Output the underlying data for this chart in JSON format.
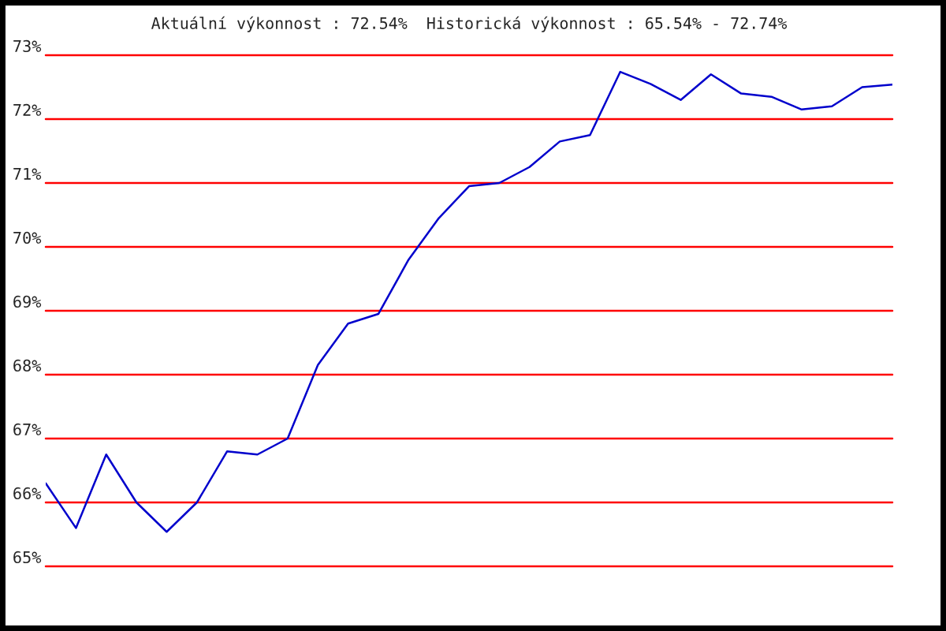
{
  "chart_data": {
    "type": "line",
    "title": "Aktuální výkonnost : 72.54%  Historická výkonnost : 65.54% - 72.74%",
    "categories": [
      null,
      null,
      null,
      null,
      null,
      null,
      null,
      null,
      null,
      null,
      null,
      null,
      null,
      null,
      null,
      null,
      null,
      null,
      null,
      null,
      null,
      null,
      null,
      null,
      null,
      null,
      null,
      null,
      null
    ],
    "series": [
      {
        "color": "#0000cc",
        "values": [
          66.3,
          65.6,
          66.75,
          66.0,
          65.54,
          66.0,
          66.8,
          66.75,
          67.0,
          68.15,
          68.8,
          68.95,
          69.8,
          70.45,
          70.95,
          71.0,
          71.25,
          71.65,
          71.75,
          72.74,
          72.55,
          72.3,
          72.7,
          72.4,
          72.35,
          72.15,
          72.2,
          72.5,
          72.54
        ]
      }
    ],
    "ylim": [
      65,
      73
    ],
    "yticks": [
      {
        "value": 65,
        "label": "65%"
      },
      {
        "value": 66,
        "label": "66%"
      },
      {
        "value": 67,
        "label": "67%"
      },
      {
        "value": 68,
        "label": "68%"
      },
      {
        "value": 69,
        "label": "69%"
      },
      {
        "value": 70,
        "label": "70%"
      },
      {
        "value": 71,
        "label": "71%"
      },
      {
        "value": 72,
        "label": "72%"
      },
      {
        "value": 73,
        "label": "73%"
      }
    ],
    "grid": "y",
    "tick_labels": "y",
    "line_style": "solid"
  }
}
